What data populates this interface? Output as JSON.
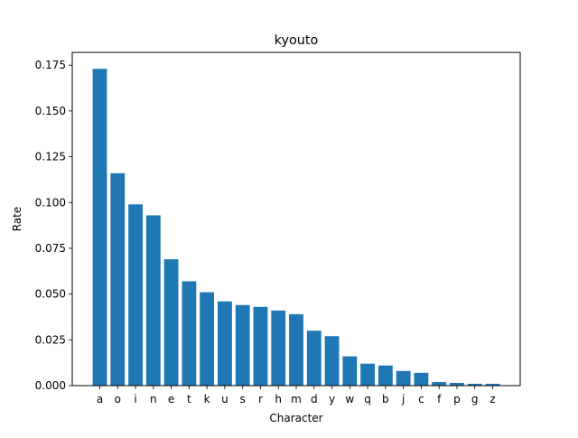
{
  "chart_data": {
    "type": "bar",
    "title": "kyouto",
    "xlabel": "Character",
    "ylabel": "Rate",
    "categories": [
      "a",
      "o",
      "i",
      "n",
      "e",
      "t",
      "k",
      "u",
      "s",
      "r",
      "h",
      "m",
      "d",
      "y",
      "w",
      "q",
      "b",
      "j",
      "c",
      "f",
      "p",
      "g",
      "z"
    ],
    "values": [
      0.173,
      0.116,
      0.099,
      0.093,
      0.069,
      0.057,
      0.051,
      0.046,
      0.044,
      0.043,
      0.041,
      0.039,
      0.03,
      0.027,
      0.016,
      0.012,
      0.011,
      0.008,
      0.007,
      0.002,
      0.0015,
      0.001,
      0.001
    ],
    "ylim": [
      0,
      0.182
    ],
    "yticks": [
      "0.000",
      "0.025",
      "0.050",
      "0.075",
      "0.100",
      "0.125",
      "0.150",
      "0.175"
    ],
    "grid": false,
    "bar_color": "#1f77b4"
  }
}
